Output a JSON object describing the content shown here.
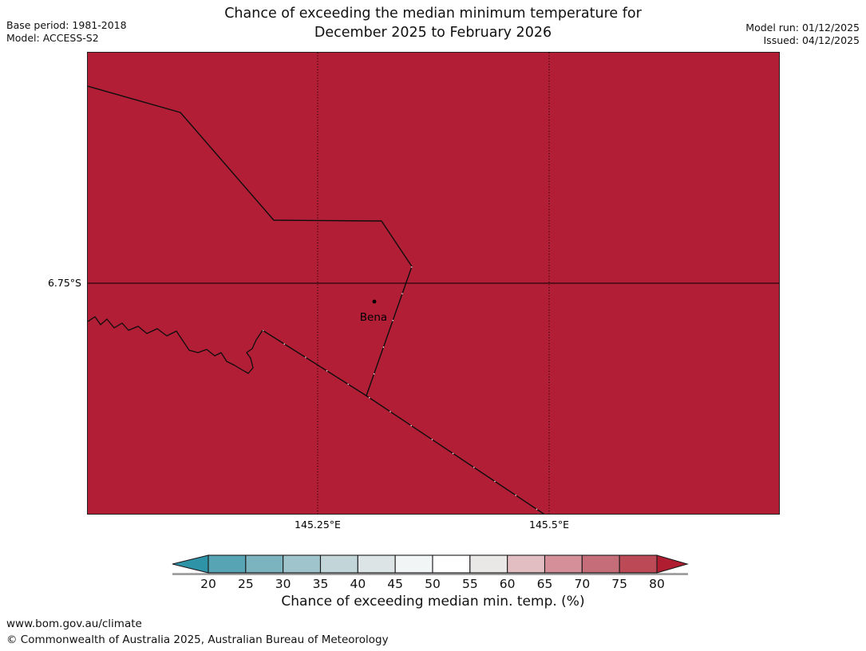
{
  "header": {
    "title_line1": "Chance of exceeding the median minimum temperature for",
    "title_line2": "December 2025 to February 2026",
    "base_period": "Base period: 1981-2018",
    "model": "Model: ACCESS-S2",
    "model_run": "Model run: 01/12/2025",
    "issued": "Issued: 04/12/2025"
  },
  "map": {
    "fill_color": "#b21e36",
    "line_color": "#0d0d0d",
    "lat_label": "6.75°S",
    "lon_labels": [
      "145.25°E",
      "145.5°E"
    ],
    "place": {
      "name": "Bena"
    }
  },
  "colorbar": {
    "label": "Chance of exceeding median min. temp. (%)",
    "ticks": [
      20,
      25,
      30,
      35,
      40,
      45,
      50,
      55,
      60,
      65,
      70,
      75,
      80
    ],
    "segment_colors": [
      "#57a5b4",
      "#7bb3bf",
      "#9fc4cb",
      "#c2d5d8",
      "#dce4e6",
      "#f2f5f5",
      "#ffffff",
      "#eae7e7",
      "#e2bdc2",
      "#d48f99",
      "#c56d79",
      "#bc4956"
    ],
    "arrow_left_color": "#2f93a7",
    "arrow_right_color": "#b01d30",
    "outline_color": "#1a1a1a",
    "shadow_color": "#999999"
  },
  "footer": {
    "url": "www.bom.gov.au/climate",
    "copyright": "© Commonwealth of Australia 2025, Australian Bureau of Meteorology"
  }
}
